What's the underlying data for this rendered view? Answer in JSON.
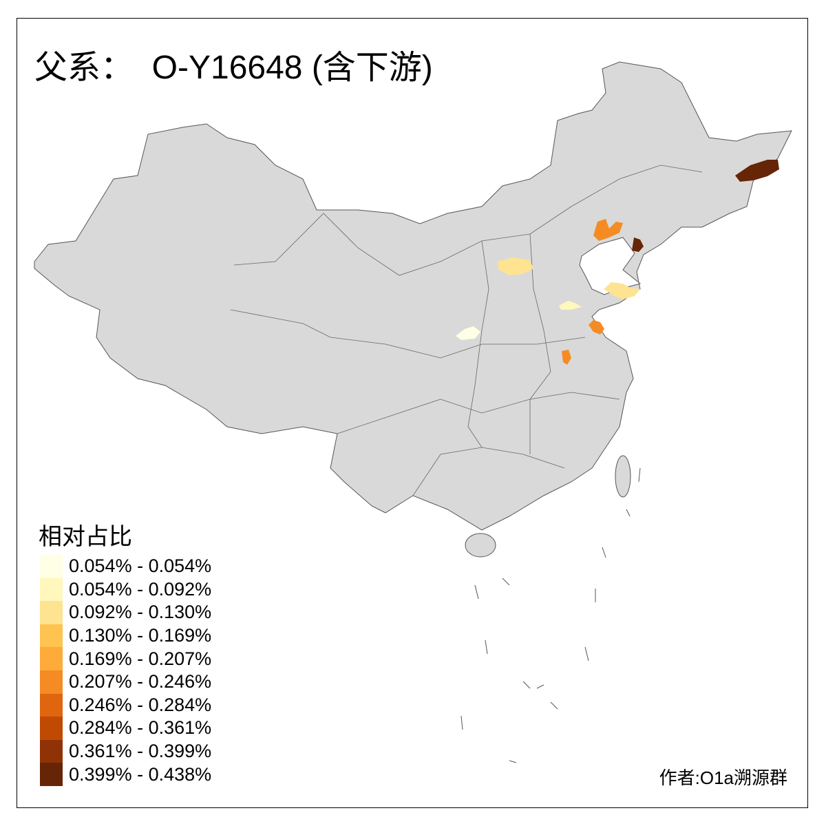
{
  "title": "父系：  O-Y16648 (含下游)",
  "legend": {
    "title": "相对占比",
    "items": [
      {
        "label": "0.054% - 0.054%",
        "color": "#FFFFE5"
      },
      {
        "label": "0.054% - 0.092%",
        "color": "#FFF7BC"
      },
      {
        "label": "0.092% - 0.130%",
        "color": "#FEE391"
      },
      {
        "label": "0.130% - 0.169%",
        "color": "#FEC44F"
      },
      {
        "label": "0.169% - 0.207%",
        "color": "#FEAB3A"
      },
      {
        "label": "0.207% - 0.246%",
        "color": "#F58B23"
      },
      {
        "label": "0.246% - 0.284%",
        "color": "#E0650F"
      },
      {
        "label": "0.284% - 0.361%",
        "color": "#C04A02"
      },
      {
        "label": "0.361% - 0.399%",
        "color": "#8F3306"
      },
      {
        "label": "0.399% - 0.438%",
        "color": "#662506"
      }
    ]
  },
  "map": {
    "base_color": "#D9D9D9",
    "border_color": "#555555",
    "sea_color": "#FFFFFF"
  },
  "credit": "作者:O1a溯源群"
}
